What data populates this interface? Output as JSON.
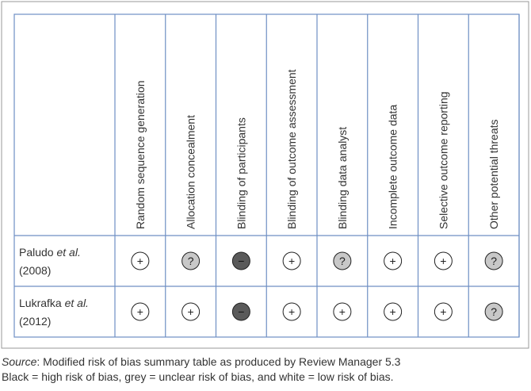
{
  "table": {
    "columns": [
      "Random sequence generation",
      "Allocation concealment",
      "Blinding of participants",
      "Blinding of outcome assessment",
      "Blinding data analyst",
      "Incomplete outcome data",
      "Selective outcome reporting",
      "Other potential threats"
    ],
    "rows": [
      {
        "author": "Paludo",
        "etal": "et al.",
        "year": "(2008)",
        "judgements": [
          "+",
          "?",
          "−",
          "+",
          "?",
          "+",
          "+",
          "?"
        ]
      },
      {
        "author": "Lukrafka",
        "etal": "et al.",
        "year": "(2012)",
        "judgements": [
          "+",
          "+",
          "−",
          "+",
          "+",
          "+",
          "+",
          "?"
        ]
      }
    ],
    "symbol_colors": {
      "+": "#ffffff",
      "?": "#c8c8c8",
      "−": "#5a5a5a"
    }
  },
  "caption": {
    "source_label": "Source",
    "source_text": ": Modified risk of bias summary table as produced by Review Manager 5.3",
    "legend": "Black = high risk of bias, grey = unclear risk of bias, and white = low risk of bias."
  }
}
